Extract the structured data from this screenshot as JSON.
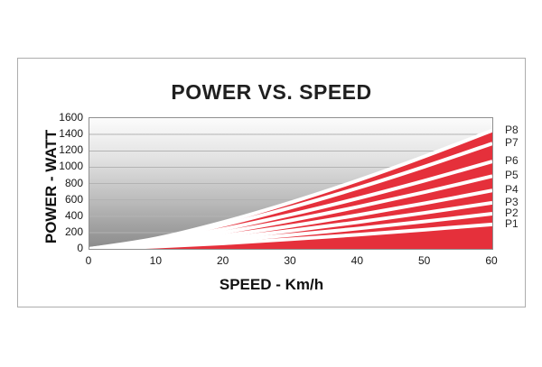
{
  "chart": {
    "title": "POWER VS. SPEED",
    "xlabel": "SPEED - Km/h",
    "ylabel": "POWER - WATT"
  },
  "chart_data": {
    "type": "area",
    "title": "POWER VS. SPEED",
    "xlabel": "SPEED - Km/h",
    "ylabel": "POWER - WATT",
    "x": [
      0,
      10,
      20,
      30,
      40,
      50,
      60
    ],
    "xlim": [
      0,
      60
    ],
    "ylim": [
      0,
      1600
    ],
    "x_ticks": [
      0,
      10,
      20,
      30,
      40,
      50,
      60
    ],
    "y_ticks": [
      0,
      200,
      400,
      600,
      800,
      1000,
      1200,
      1400,
      1600
    ],
    "grid": true,
    "legend_position": "right",
    "series": [
      {
        "name": "P1",
        "values": [
          0,
          27,
          68,
          118,
          174,
          235,
          300
        ]
      },
      {
        "name": "P2",
        "values": [
          0,
          38,
          98,
          169,
          249,
          336,
          430
        ]
      },
      {
        "name": "P3",
        "values": [
          0,
          50,
          128,
          222,
          327,
          442,
          565
        ]
      },
      {
        "name": "P4",
        "values": [
          0,
          64,
          162,
          280,
          414,
          559,
          715
        ]
      },
      {
        "name": "P5",
        "values": [
          0,
          79,
          202,
          349,
          515,
          696,
          890
        ]
      },
      {
        "name": "P6",
        "values": [
          0,
          95,
          243,
          420,
          619,
          837,
          1070
        ]
      },
      {
        "name": "P7",
        "values": [
          0,
          115,
          293,
          506,
          746,
          1009,
          1290
        ]
      },
      {
        "name": "P8",
        "values": [
          0,
          129,
          329,
          569,
          839,
          1134,
          1450
        ]
      }
    ],
    "colors": {
      "series_fill": "#e5303b",
      "series_separator": "#ffffff",
      "plot_bg_top": "#fcfcfc",
      "plot_bg_bottom": "#8a8a8a",
      "gridline": "#b3b3b3",
      "text": "#1a1a1a"
    }
  }
}
